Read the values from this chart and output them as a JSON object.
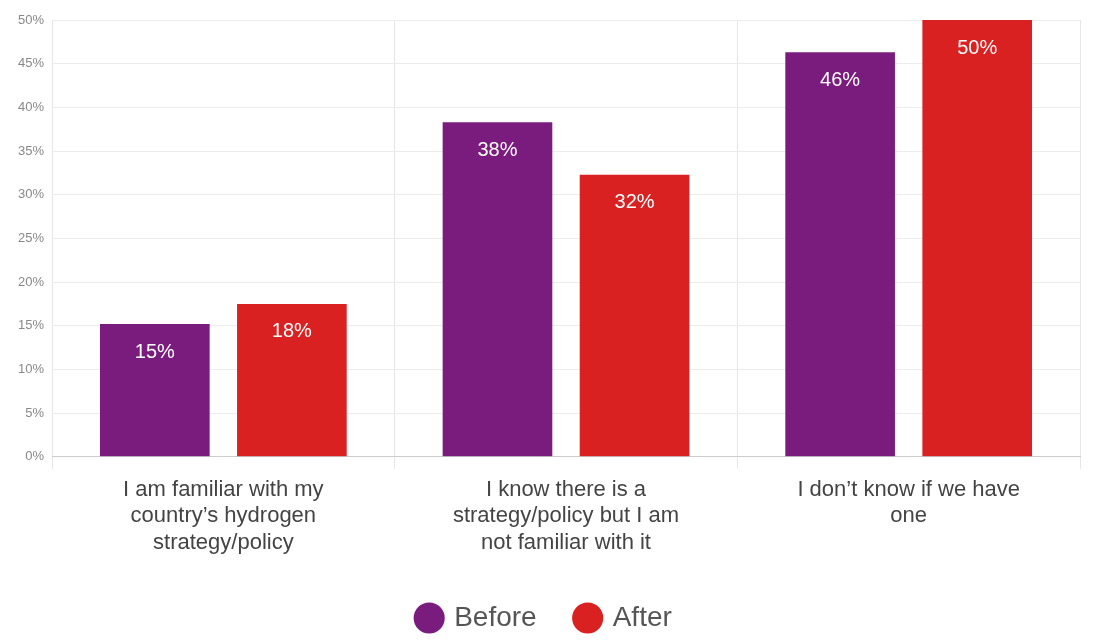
{
  "chart_data": {
    "type": "bar",
    "categories": [
      "I am familiar with my country’s hydrogen strategy/policy",
      "I know there is a strategy/policy but I am not familiar with it",
      "I don’t know if we have one"
    ],
    "series": [
      {
        "name": "Before",
        "color": "#7a1c7e",
        "values": [
          15.2,
          38.3,
          46.3
        ],
        "value_labels": [
          "15%",
          "38%",
          "46%"
        ]
      },
      {
        "name": "After",
        "color": "#d92121",
        "values": [
          17.5,
          32.3,
          50
        ],
        "value_labels": [
          "18%",
          "32%",
          "50%"
        ]
      }
    ],
    "ylim": [
      0,
      50
    ],
    "yticks": [
      {
        "value": 0,
        "label": "0%"
      },
      {
        "value": 5,
        "label": "5%"
      },
      {
        "value": 10,
        "label": "10%"
      },
      {
        "value": 15,
        "label": "15%"
      },
      {
        "value": 20,
        "label": "20%"
      },
      {
        "value": 25,
        "label": "25%"
      },
      {
        "value": 30,
        "label": "30%"
      },
      {
        "value": 35,
        "label": "35%"
      },
      {
        "value": 40,
        "label": "40%"
      },
      {
        "value": 45,
        "label": "45%"
      },
      {
        "value": 50,
        "label": "50%"
      }
    ],
    "grid": true,
    "legend": "bottom"
  }
}
